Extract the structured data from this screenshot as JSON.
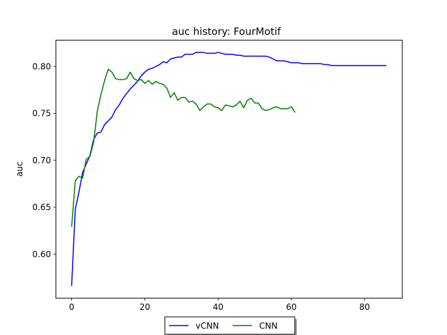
{
  "colors": {
    "background": "#ffffff",
    "axes": "#000000"
  },
  "chart_data": {
    "type": "line",
    "title": "auc history:  FourMotif",
    "xlabel": "",
    "ylabel": "auc",
    "xlim": [
      -4.3,
      90.3
    ],
    "ylim": [
      0.553,
      0.828
    ],
    "xticks": [
      0,
      20,
      40,
      60,
      80
    ],
    "xtick_labels": [
      "0",
      "20",
      "40",
      "60",
      "80"
    ],
    "yticks": [
      0.6,
      0.65,
      0.7,
      0.75,
      0.8
    ],
    "ytick_labels": [
      "0.60",
      "0.65",
      "0.70",
      "0.75",
      "0.80"
    ],
    "grid": false,
    "legend": {
      "placement": "below-center",
      "ncol": 2
    },
    "series": [
      {
        "name": "vCNN",
        "color": "#0000ff",
        "x": [
          0,
          1,
          2,
          3,
          4,
          5,
          6,
          7,
          8,
          9,
          10,
          11,
          12,
          13,
          14,
          15,
          16,
          17,
          18,
          19,
          20,
          21,
          22,
          23,
          24,
          25,
          26,
          27,
          28,
          29,
          30,
          31,
          32,
          33,
          34,
          35,
          36,
          37,
          38,
          39,
          40,
          41,
          42,
          43,
          44,
          45,
          46,
          47,
          48,
          49,
          50,
          51,
          52,
          53,
          54,
          55,
          56,
          57,
          58,
          59,
          60,
          61,
          62,
          63,
          64,
          65,
          66,
          67,
          68,
          69,
          70,
          71,
          72,
          73,
          74,
          75,
          76,
          77,
          78,
          79,
          80,
          81,
          82,
          83,
          84,
          85,
          86
        ],
        "y": [
          0.566,
          0.648,
          0.666,
          0.687,
          0.696,
          0.705,
          0.722,
          0.729,
          0.73,
          0.738,
          0.742,
          0.746,
          0.754,
          0.759,
          0.766,
          0.771,
          0.776,
          0.78,
          0.784,
          0.79,
          0.794,
          0.797,
          0.798,
          0.8,
          0.802,
          0.805,
          0.804,
          0.808,
          0.809,
          0.81,
          0.81,
          0.813,
          0.813,
          0.813,
          0.815,
          0.815,
          0.815,
          0.814,
          0.814,
          0.814,
          0.815,
          0.814,
          0.813,
          0.813,
          0.813,
          0.812,
          0.812,
          0.811,
          0.811,
          0.811,
          0.811,
          0.811,
          0.811,
          0.811,
          0.81,
          0.808,
          0.806,
          0.806,
          0.806,
          0.805,
          0.804,
          0.804,
          0.804,
          0.803,
          0.803,
          0.803,
          0.803,
          0.803,
          0.803,
          0.802,
          0.802,
          0.801,
          0.801,
          0.801,
          0.801,
          0.801,
          0.801,
          0.801,
          0.801,
          0.801,
          0.801,
          0.801,
          0.801,
          0.801,
          0.801,
          0.801,
          0.801
        ]
      },
      {
        "name": "CNN",
        "color": "#008000",
        "x": [
          0,
          1,
          2,
          3,
          4,
          5,
          6,
          7,
          8,
          9,
          10,
          11,
          12,
          13,
          14,
          15,
          16,
          17,
          18,
          19,
          20,
          21,
          22,
          23,
          24,
          25,
          26,
          27,
          28,
          29,
          30,
          31,
          32,
          33,
          34,
          35,
          36,
          37,
          38,
          39,
          40,
          41,
          42,
          43,
          44,
          45,
          46,
          47,
          48,
          49,
          50,
          51,
          52,
          53,
          54,
          55,
          56,
          57,
          58,
          59,
          60,
          61
        ],
        "y": [
          0.629,
          0.678,
          0.683,
          0.681,
          0.701,
          0.704,
          0.719,
          0.752,
          0.77,
          0.785,
          0.797,
          0.794,
          0.787,
          0.786,
          0.786,
          0.787,
          0.794,
          0.787,
          0.785,
          0.786,
          0.782,
          0.785,
          0.781,
          0.784,
          0.782,
          0.781,
          0.777,
          0.767,
          0.772,
          0.764,
          0.767,
          0.767,
          0.762,
          0.763,
          0.76,
          0.753,
          0.757,
          0.76,
          0.76,
          0.757,
          0.756,
          0.753,
          0.759,
          0.758,
          0.757,
          0.759,
          0.763,
          0.756,
          0.764,
          0.766,
          0.761,
          0.761,
          0.755,
          0.753,
          0.754,
          0.756,
          0.757,
          0.755,
          0.755,
          0.755,
          0.757,
          0.751
        ]
      }
    ]
  }
}
